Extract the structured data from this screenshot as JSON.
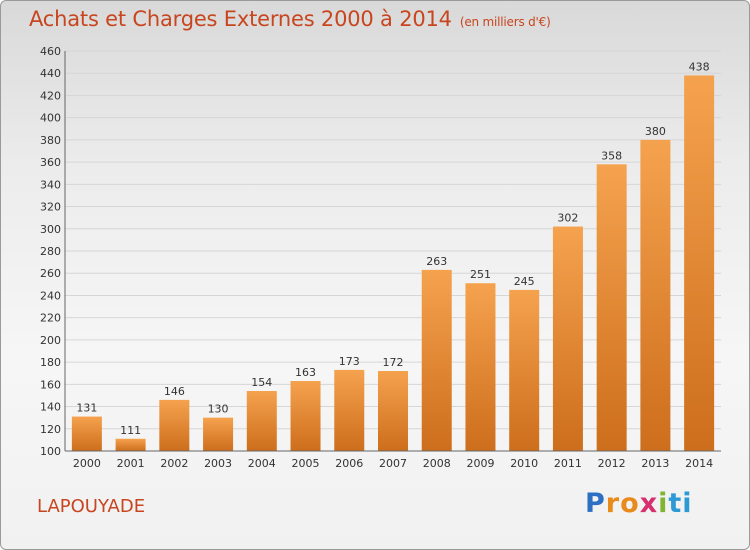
{
  "title": "Achats et Charges Externes 2000 à 2014",
  "title_unit": "(en milliers d'€)",
  "commune": "LAPOUYADE",
  "logo": {
    "text": "Proxiti",
    "letters": [
      "P",
      "r",
      "o",
      "x",
      "i",
      "ti"
    ]
  },
  "colors": {
    "accent": "#c8461f",
    "bar_light": "#f5a24e",
    "bar_dark": "#cd6e1c"
  },
  "chart_data": {
    "type": "bar",
    "title": "Achats et Charges Externes 2000 à 2014",
    "categories": [
      "2000",
      "2001",
      "2002",
      "2003",
      "2004",
      "2005",
      "2006",
      "2007",
      "2008",
      "2009",
      "2010",
      "2011",
      "2012",
      "2013",
      "2014"
    ],
    "values": [
      131,
      111,
      146,
      130,
      154,
      163,
      173,
      172,
      263,
      251,
      245,
      302,
      358,
      380,
      438
    ],
    "ylim": [
      100,
      460
    ],
    "yticks": [
      100,
      120,
      140,
      160,
      180,
      200,
      220,
      240,
      260,
      280,
      300,
      320,
      340,
      360,
      380,
      400,
      420,
      440,
      460
    ],
    "grid": true,
    "legend": "none",
    "xlabel": "",
    "ylabel": ""
  }
}
